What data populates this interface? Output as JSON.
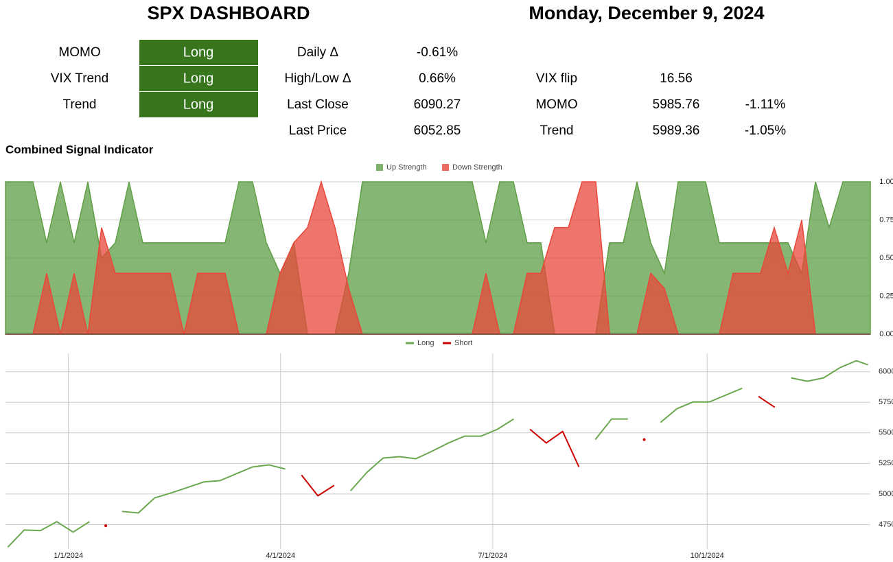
{
  "header": {
    "title": "SPX DASHBOARD",
    "date": "Monday, December 9, 2024"
  },
  "signals": [
    {
      "label": "MOMO",
      "value": "Long"
    },
    {
      "label": "VIX Trend",
      "value": "Long"
    },
    {
      "label": "Trend",
      "value": "Long"
    }
  ],
  "stats": [
    {
      "label": "Daily Δ",
      "value": "-0.61%"
    },
    {
      "label": "High/Low Δ",
      "value": "0.66%"
    },
    {
      "label": "Last Close",
      "value": "6090.27"
    },
    {
      "label": "Last Price",
      "value": "6052.85"
    }
  ],
  "levels": [
    {
      "label": "VIX flip",
      "value": "16.56"
    },
    {
      "label": "MOMO",
      "value": "5985.76",
      "change": "-1.11%"
    },
    {
      "label": "Trend",
      "value": "5989.36",
      "change": "-1.05%"
    }
  ],
  "chart_data": [
    {
      "type": "area",
      "title": "Combined Signal Indicator",
      "ylim": [
        0,
        1
      ],
      "yticks": [
        {
          "value": 0,
          "label": "0.00"
        },
        {
          "value": 0.25,
          "label": "0.25"
        },
        {
          "value": 0.5,
          "label": "0.50"
        },
        {
          "value": 0.75,
          "label": "0.75"
        },
        {
          "value": 1,
          "label": "1.00"
        }
      ],
      "grid": true,
      "legend": "top",
      "series": [
        {
          "name": "Up Strength",
          "color": "#5e9e45",
          "values": [
            1,
            1,
            1,
            0.6,
            1,
            0.6,
            1,
            0.5,
            0.6,
            1,
            0.6,
            0.6,
            0.6,
            0.6,
            0.6,
            0.6,
            0.6,
            1,
            1,
            0.6,
            0.4,
            0.6,
            0,
            0,
            0,
            0.4,
            1,
            1,
            1,
            1,
            1,
            1,
            1,
            1,
            1,
            0.6,
            1,
            1,
            0.6,
            0.6,
            0,
            0,
            0,
            0,
            0.6,
            0.6,
            1,
            0.6,
            0.4,
            1,
            1,
            1,
            0.6,
            0.6,
            0.6,
            0.6,
            0.6,
            0.6,
            0.4,
            1,
            0.7,
            1,
            1,
            1
          ]
        },
        {
          "name": "Down Strength",
          "color": "#e8473a",
          "values": [
            0,
            0,
            0,
            0.4,
            0,
            0.4,
            0,
            0.7,
            0.4,
            0.4,
            0.4,
            0.4,
            0.4,
            0,
            0.4,
            0.4,
            0.4,
            0,
            0,
            0,
            0.4,
            0.6,
            0.7,
            1,
            0.7,
            0.3,
            0,
            0,
            0,
            0,
            0,
            0,
            0,
            0,
            0,
            0.4,
            0,
            0,
            0.4,
            0.4,
            0.7,
            0.7,
            1,
            1,
            0,
            0,
            0,
            0.4,
            0.3,
            0,
            0,
            0,
            0,
            0.4,
            0.4,
            0.4,
            0.7,
            0.4,
            0.75,
            0,
            0,
            0,
            0,
            0
          ]
        }
      ]
    },
    {
      "type": "line",
      "x": [
        "12/6/2023",
        "12/13/2023",
        "12/20/2023",
        "12/27/2023",
        "1/3/2024",
        "1/10/2024",
        "1/17/2024",
        "1/24/2024",
        "1/31/2024",
        "2/7/2024",
        "2/14/2024",
        "2/21/2024",
        "2/28/2024",
        "3/6/2024",
        "3/13/2024",
        "3/20/2024",
        "3/27/2024",
        "4/3/2024",
        "4/10/2024",
        "4/17/2024",
        "4/24/2024",
        "5/1/2024",
        "5/8/2024",
        "5/15/2024",
        "5/22/2024",
        "5/29/2024",
        "6/5/2024",
        "6/12/2024",
        "6/19/2024",
        "6/26/2024",
        "7/3/2024",
        "7/10/2024",
        "7/17/2024",
        "7/24/2024",
        "7/31/2024",
        "8/7/2024",
        "8/14/2024",
        "8/21/2024",
        "8/28/2024",
        "9/4/2024",
        "9/11/2024",
        "9/18/2024",
        "9/25/2024",
        "10/2/2024",
        "10/9/2024",
        "10/16/2024",
        "10/23/2024",
        "10/30/2024",
        "11/6/2024",
        "11/13/2024",
        "11/20/2024",
        "11/27/2024",
        "12/4/2024",
        "12/9/2024"
      ],
      "xlim": [
        "12/5/2023",
        "12/10/2024"
      ],
      "xticks": [
        "1/1/2024",
        "4/1/2024",
        "7/1/2024",
        "10/1/2024"
      ],
      "ylim": [
        4550,
        6150
      ],
      "yticks": [
        4750,
        5000,
        5250,
        5500,
        5750,
        6000
      ],
      "grid": true,
      "legend": "top",
      "series": [
        {
          "name": "Long",
          "color": "#6aa84f",
          "values": [
            4565,
            4705,
            4700,
            4773,
            4688,
            4773,
            null,
            4857,
            4845,
            4968,
            5008,
            5053,
            5098,
            5109,
            5165,
            5221,
            5238,
            5204,
            null,
            null,
            null,
            5025,
            5176,
            5294,
            5305,
            5288,
            5350,
            5417,
            5473,
            5473,
            5529,
            5613,
            null,
            null,
            null,
            null,
            5445,
            5613,
            5613,
            null,
            5585,
            5697,
            5753,
            5753,
            5809,
            5865,
            null,
            null,
            5950,
            5922,
            5950,
            6034,
            6090,
            6056
          ]
        },
        {
          "name": "Short",
          "color": "#cc0000",
          "values": [
            null,
            null,
            null,
            null,
            null,
            null,
            4740,
            null,
            null,
            null,
            null,
            null,
            null,
            null,
            null,
            null,
            null,
            null,
            5154,
            4985,
            5070,
            null,
            null,
            null,
            null,
            null,
            null,
            null,
            null,
            null,
            null,
            null,
            5529,
            5417,
            5512,
            5221,
            null,
            null,
            null,
            5445,
            null,
            null,
            null,
            null,
            null,
            null,
            5798,
            5709,
            null,
            null,
            null,
            null,
            null,
            null
          ]
        }
      ]
    }
  ]
}
